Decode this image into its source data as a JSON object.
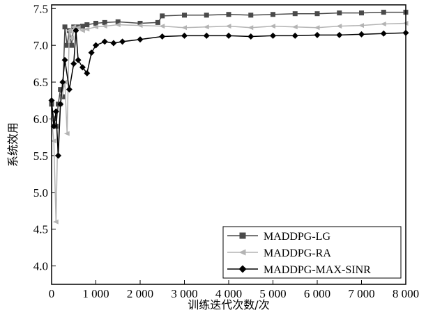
{
  "chart_data": {
    "type": "line",
    "title": "",
    "xlabel": "训练迭代次数/次",
    "ylabel": "系统效用",
    "xlim": [
      0,
      8000
    ],
    "ylim": [
      3.75,
      7.55
    ],
    "x_ticks": [
      0,
      1000,
      2000,
      3000,
      4000,
      5000,
      6000,
      7000,
      8000
    ],
    "x_tick_labels": [
      "0",
      "1 000",
      "2 000",
      "3 000",
      "4 000",
      "5 000",
      "6 000",
      "7 000",
      "8 000"
    ],
    "y_ticks": [
      4.0,
      4.5,
      5.0,
      5.5,
      6.0,
      6.5,
      7.0,
      7.5
    ],
    "y_tick_labels": [
      "4.0",
      "4.5",
      "5.0",
      "5.5",
      "6.0",
      "6.5",
      "7.0",
      "7.5"
    ],
    "grid": false,
    "legend_position": "bottom-right",
    "series": [
      {
        "name": "MADDPG-LG",
        "color": "#4a4a4a",
        "marker": "square",
        "x": [
          0,
          50,
          100,
          150,
          200,
          250,
          300,
          350,
          400,
          450,
          500,
          600,
          700,
          800,
          1000,
          1200,
          1500,
          2000,
          2400,
          2500,
          3000,
          3500,
          4000,
          4500,
          5000,
          5500,
          6000,
          6500,
          7000,
          7500,
          8000
        ],
        "y": [
          6.2,
          6.0,
          5.9,
          6.2,
          6.4,
          6.3,
          7.25,
          7.0,
          7.2,
          7.0,
          7.25,
          7.25,
          7.26,
          7.28,
          7.3,
          7.31,
          7.32,
          7.3,
          7.31,
          7.4,
          7.41,
          7.41,
          7.42,
          7.41,
          7.42,
          7.43,
          7.43,
          7.44,
          7.44,
          7.45,
          7.45
        ]
      },
      {
        "name": "MADDPG-RA",
        "color": "#b4b4b4",
        "marker": "triangle-left",
        "x": [
          0,
          50,
          100,
          130,
          200,
          300,
          350,
          400,
          450,
          500,
          600,
          700,
          800,
          1000,
          1200,
          1500,
          2000,
          2500,
          3000,
          3500,
          4000,
          4500,
          5000,
          5500,
          6000,
          6500,
          7000,
          7500,
          8000
        ],
        "y": [
          6.0,
          5.7,
          4.6,
          5.5,
          6.2,
          6.5,
          5.8,
          7.2,
          7.1,
          7.25,
          7.24,
          7.2,
          7.22,
          7.25,
          7.26,
          7.28,
          7.27,
          7.26,
          7.24,
          7.25,
          7.26,
          7.24,
          7.26,
          7.25,
          7.24,
          7.26,
          7.27,
          7.29,
          7.3
        ]
      },
      {
        "name": "MADDPG-MAX-SINR",
        "color": "#000000",
        "marker": "diamond",
        "x": [
          0,
          50,
          100,
          150,
          200,
          250,
          300,
          400,
          500,
          550,
          600,
          700,
          800,
          900,
          1000,
          1200,
          1400,
          1600,
          2000,
          2500,
          3000,
          3500,
          4000,
          4500,
          5000,
          5500,
          6000,
          6500,
          7000,
          7500,
          8000
        ],
        "y": [
          6.25,
          5.9,
          6.1,
          5.5,
          6.2,
          6.5,
          6.8,
          6.4,
          6.75,
          7.2,
          6.8,
          6.7,
          6.62,
          6.9,
          7.0,
          7.05,
          7.03,
          7.05,
          7.08,
          7.12,
          7.13,
          7.13,
          7.13,
          7.12,
          7.13,
          7.13,
          7.14,
          7.14,
          7.15,
          7.16,
          7.17
        ]
      }
    ]
  }
}
